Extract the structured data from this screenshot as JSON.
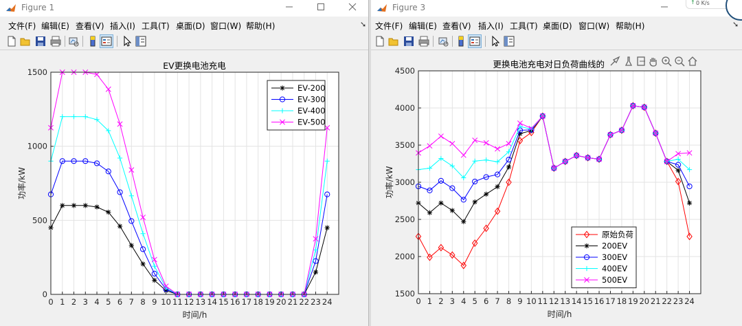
{
  "windows": [
    {
      "title": "Figure 1",
      "menus": [
        "文件(F)",
        "编辑(E)",
        "查看(V)",
        "插入(I)",
        "工具(T)",
        "桌面(D)",
        "窗口(W)",
        "帮助(H)"
      ],
      "toolbar_icons": [
        "new-figure-icon",
        "open-file-icon",
        "save-icon",
        "print-icon",
        "link-plot-icon",
        "colorbar-icon",
        "legend-icon",
        "pointer-icon",
        "property-editor-icon"
      ]
    },
    {
      "title": "Figure 3",
      "menus": [
        "文件(F)",
        "编辑(E)",
        "查看(V)",
        "插入(I)",
        "工具(T)",
        "桌面(D)",
        "窗口(W)",
        "帮助(H)"
      ],
      "toolbar_icons": [
        "new-figure-icon",
        "open-file-icon",
        "save-icon",
        "print-icon",
        "link-plot-icon",
        "colorbar-icon",
        "legend-icon",
        "pointer-icon",
        "property-editor-icon"
      ],
      "axes_toolbar_icons": [
        "brush-icon",
        "data-tips-icon",
        "export-icon",
        "pan-icon",
        "zoom-in-icon",
        "zoom-out-icon",
        "home-icon"
      ]
    }
  ],
  "overlay": {
    "speed_text": "0 K/s"
  },
  "colors": {
    "black": "#000000",
    "blue": "#0000ff",
    "cyan": "#00ffff",
    "magenta": "#ff00ff",
    "red": "#ff0000",
    "purple": "#8a2be2"
  },
  "chart_data": [
    {
      "type": "line",
      "title": "EV更换电池充电",
      "xlabel": "时间/h",
      "ylabel": "功率/kW",
      "xlim": [
        0,
        25
      ],
      "ylim": [
        0,
        1500
      ],
      "xticks": [
        "0",
        "1",
        "2",
        "3",
        "4",
        "5",
        "6",
        "7",
        "8",
        "9",
        "10",
        "11",
        "12",
        "13",
        "14",
        "15",
        "16",
        "17",
        "18",
        "19",
        "20",
        "21",
        "22",
        "23",
        "24"
      ],
      "yticks": [
        "0",
        "500",
        "1000",
        "1500"
      ],
      "grid": true,
      "legend_position": "top-right",
      "x": [
        0,
        1,
        2,
        3,
        4,
        5,
        6,
        7,
        8,
        9,
        10,
        11,
        12,
        13,
        14,
        15,
        16,
        17,
        18,
        19,
        20,
        21,
        22,
        23,
        24
      ],
      "series": [
        {
          "name": "EV-200",
          "color": "#000000",
          "marker": "star",
          "values": [
            450,
            600,
            600,
            600,
            590,
            555,
            460,
            330,
            205,
            95,
            25,
            0,
            0,
            0,
            0,
            0,
            0,
            0,
            0,
            0,
            0,
            0,
            0,
            150,
            450
          ]
        },
        {
          "name": "EV-300",
          "color": "#0000ff",
          "marker": "circle",
          "values": [
            675,
            900,
            900,
            900,
            885,
            830,
            690,
            495,
            305,
            140,
            35,
            0,
            0,
            0,
            0,
            0,
            0,
            0,
            0,
            0,
            0,
            0,
            0,
            225,
            675
          ]
        },
        {
          "name": "EV-400",
          "color": "#00ffff",
          "marker": "plus",
          "values": [
            900,
            1200,
            1200,
            1200,
            1180,
            1105,
            920,
            665,
            410,
            190,
            45,
            0,
            0,
            0,
            0,
            0,
            0,
            0,
            0,
            0,
            0,
            0,
            0,
            300,
            900
          ]
        },
        {
          "name": "EV-500",
          "color": "#ff00ff",
          "marker": "x",
          "values": [
            1125,
            1500,
            1500,
            1500,
            1485,
            1385,
            1150,
            840,
            520,
            235,
            55,
            0,
            0,
            0,
            0,
            0,
            0,
            0,
            0,
            0,
            0,
            0,
            0,
            375,
            1125
          ]
        }
      ]
    },
    {
      "type": "line",
      "title": "更换电池充电对日负荷曲线的",
      "xlabel": "时间/h",
      "ylabel": "功率/kW",
      "xlim": [
        0,
        25
      ],
      "ylim": [
        1500,
        4500
      ],
      "xticks": [
        "0",
        "1",
        "2",
        "3",
        "4",
        "5",
        "6",
        "7",
        "8",
        "9",
        "10",
        "11",
        "12",
        "13",
        "14",
        "15",
        "16",
        "17",
        "18",
        "19",
        "20",
        "21",
        "22",
        "23",
        "24"
      ],
      "yticks": [
        "1500",
        "2000",
        "2500",
        "3000",
        "3500",
        "4000",
        "4500"
      ],
      "grid": true,
      "legend_position": "bottom-center",
      "x": [
        0,
        1,
        2,
        3,
        4,
        5,
        6,
        7,
        8,
        9,
        10,
        11,
        12,
        13,
        14,
        15,
        16,
        17,
        18,
        19,
        20,
        21,
        22,
        23,
        24
      ],
      "series": [
        {
          "name": "原始负荷",
          "color": "#ff0000",
          "marker": "diamond",
          "values": [
            2270,
            1990,
            2120,
            2020,
            1880,
            2180,
            2380,
            2610,
            3000,
            3560,
            3670,
            3890,
            3190,
            3280,
            3360,
            3330,
            3310,
            3640,
            3700,
            4030,
            4010,
            3660,
            3280,
            3010,
            2270
          ]
        },
        {
          "name": "200EV",
          "color": "#000000",
          "marker": "star",
          "values": [
            2720,
            2590,
            2720,
            2620,
            2470,
            2735,
            2840,
            2940,
            3205,
            3655,
            3695,
            3890,
            3190,
            3280,
            3360,
            3330,
            3310,
            3640,
            3700,
            4030,
            4010,
            3660,
            3280,
            3160,
            2720
          ]
        },
        {
          "name": "300EV",
          "color": "#0000ff",
          "marker": "circle",
          "values": [
            2945,
            2890,
            3020,
            2920,
            2765,
            3010,
            3070,
            3105,
            3305,
            3700,
            3705,
            3890,
            3190,
            3280,
            3360,
            3330,
            3310,
            3640,
            3700,
            4030,
            4010,
            3660,
            3280,
            3235,
            2945
          ]
        },
        {
          "name": "400EV",
          "color": "#00ffff",
          "marker": "plus",
          "values": [
            3170,
            3190,
            3320,
            3220,
            3060,
            3285,
            3300,
            3275,
            3410,
            3750,
            3715,
            3890,
            3190,
            3280,
            3360,
            3330,
            3310,
            3640,
            3700,
            4030,
            4010,
            3660,
            3280,
            3310,
            3170
          ]
        },
        {
          "name": "500EV",
          "color": "#ff00ff",
          "marker": "x",
          "values": [
            3395,
            3490,
            3620,
            3520,
            3365,
            3565,
            3530,
            3450,
            3520,
            3795,
            3725,
            3890,
            3190,
            3280,
            3360,
            3330,
            3310,
            3640,
            3700,
            4030,
            4010,
            3660,
            3280,
            3385,
            3395
          ]
        }
      ]
    }
  ]
}
